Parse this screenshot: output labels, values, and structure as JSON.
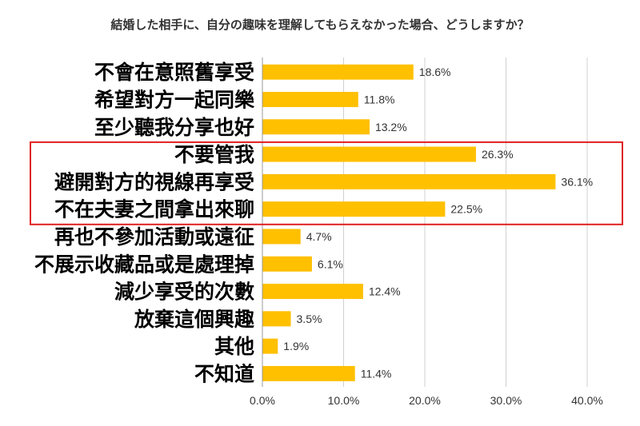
{
  "chart_data": {
    "type": "bar",
    "orientation": "horizontal",
    "title": "結婚した相手に、自分の趣味を理解してもらえなかった場合、どうしますか？",
    "categories": [
      "不會在意照舊享受",
      "希望對方一起同樂",
      "至少聽我分享也好",
      "不要管我",
      "避開對方的視線再享受",
      "不在夫妻之間拿出來聊",
      "再也不參加活動或遠征",
      "不展示收藏品或是處理掉",
      "減少享受的次數",
      "放棄這個興趣",
      "其他",
      "不知道"
    ],
    "values": [
      18.6,
      11.8,
      13.2,
      26.3,
      36.1,
      22.5,
      4.7,
      6.1,
      12.4,
      3.5,
      1.9,
      11.4
    ],
    "value_labels": [
      "18.6%",
      "11.8%",
      "13.2%",
      "26.3%",
      "36.1%",
      "22.5%",
      "4.7%",
      "6.1%",
      "12.4%",
      "3.5%",
      "1.9%",
      "11.4%"
    ],
    "xlim": [
      0,
      40
    ],
    "x_ticks": [
      0,
      10,
      20,
      30,
      40
    ],
    "x_tick_labels": [
      "0.0%",
      "10.0%",
      "20.0%",
      "30.0%",
      "40.0%"
    ],
    "xlabel": "",
    "ylabel": "",
    "grid": "vertical",
    "highlighted_categories": [
      3,
      4,
      5
    ],
    "bar_color": "#FFC000",
    "highlight_box_color": "#E02020"
  }
}
